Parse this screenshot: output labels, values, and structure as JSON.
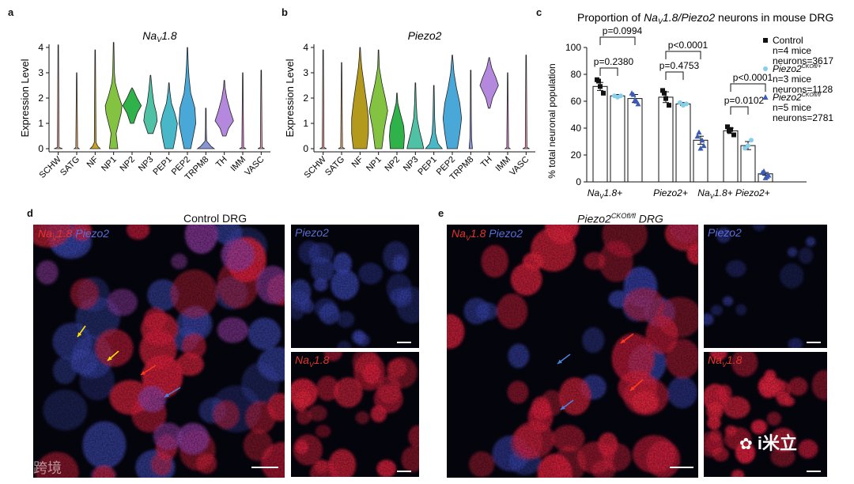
{
  "panel_a": {
    "letter": "a",
    "title_base": "Na",
    "title_sub": "V",
    "title_rest": "1.8",
    "ylabel": "Expression Level",
    "yticks": [
      "0",
      "1",
      "2",
      "3",
      "4"
    ],
    "categories": [
      "SCHW",
      "SATG",
      "NF",
      "NP1",
      "NP2",
      "NP3",
      "PEP1",
      "PEP2",
      "TRPM8",
      "TH",
      "IMM",
      "VASC"
    ]
  },
  "panel_b": {
    "letter": "b",
    "title": "Piezo2",
    "ylabel": "Expression Level",
    "yticks": [
      "0",
      "1",
      "2",
      "3",
      "4"
    ],
    "categories": [
      "SCHW",
      "SATG",
      "NF",
      "NP1",
      "NP2",
      "NP3",
      "PEP1",
      "PEP2",
      "TRPM8",
      "TH",
      "IMM",
      "VASC"
    ]
  },
  "panel_c": {
    "letter": "c",
    "title_pre": "Proportion of ",
    "title_it": "Na",
    "title_sub": "V",
    "title_it2": "1.8/Piezo2",
    "title_post": " neurons in mouse DRG",
    "ylabel": "% total neuronal population",
    "yticks": [
      "0",
      "20",
      "40",
      "60",
      "80",
      "100"
    ],
    "group_labels": [
      "NaV1.8+",
      "Piezo2+",
      "NaV1.8+ Piezo2+"
    ],
    "pvalues": [
      "p=0.0994",
      "p=0.2380",
      "p<0.0001",
      "p=0.4753",
      "p<0.0001",
      "p=0.0102"
    ],
    "legend": [
      {
        "name": "Control",
        "line2": "n=4 mice",
        "line3": "neurons=3617",
        "color": "#111111",
        "marker": "square"
      },
      {
        "name": "Piezo2",
        "sup": "CKOfl/+",
        "line2": "n=3 mice",
        "line3": "neurons=1128",
        "color": "#87ceeb",
        "marker": "circle"
      },
      {
        "name": "Piezo2",
        "sup": "CKOfl/fl",
        "line2": "n=5 mice",
        "line3": "neurons=2781",
        "color": "#3b5bb5",
        "marker": "triangle"
      }
    ]
  },
  "chart_data": [
    {
      "type": "violin",
      "title": "NaV1.8",
      "ylabel": "Expression Level",
      "ylim": [
        0,
        4
      ],
      "categories": [
        "SCHW",
        "SATG",
        "NF",
        "NP1",
        "NP2",
        "NP3",
        "PEP1",
        "PEP2",
        "TRPM8",
        "TH",
        "IMM",
        "VASC"
      ],
      "max_values": [
        4.1,
        3.0,
        3.9,
        4.2,
        2.4,
        2.9,
        2.6,
        4.0,
        1.6,
        2.7,
        3.0,
        3.1
      ],
      "colors": [
        "#f4a6a1",
        "#e8b07a",
        "#c9a227",
        "#84c341",
        "#2fb24a",
        "#4fc1a4",
        "#48b8c9",
        "#4aa8d8",
        "#8896d6",
        "#b488dc",
        "#e08ad6",
        "#f19ebc"
      ]
    },
    {
      "type": "violin",
      "title": "Piezo2",
      "ylabel": "Expression Level",
      "ylim": [
        0,
        4
      ],
      "categories": [
        "SCHW",
        "SATG",
        "NF",
        "NP1",
        "NP2",
        "NP3",
        "PEP1",
        "PEP2",
        "TRPM8",
        "TH",
        "IMM",
        "VASC"
      ],
      "max_values": [
        3.9,
        3.4,
        4.0,
        3.9,
        2.2,
        2.6,
        2.5,
        3.7,
        3.1,
        3.6,
        3.0,
        3.7
      ],
      "colors": [
        "#f4a6a1",
        "#e8b07a",
        "#b49a1c",
        "#84c341",
        "#2fb24a",
        "#4fc1a4",
        "#48b8c9",
        "#4aa8d8",
        "#8896d6",
        "#b488dc",
        "#e08ad6",
        "#f19ebc"
      ]
    },
    {
      "type": "bar",
      "title": "Proportion of NaV1.8/Piezo2 neurons in mouse DRG",
      "ylabel": "% total neuronal population",
      "ylim": [
        0,
        100
      ],
      "categories": [
        "NaV1.8+",
        "Piezo2+",
        "NaV1.8+ Piezo2+"
      ],
      "series": [
        {
          "name": "Control",
          "values": [
            71,
            63,
            38
          ],
          "errors": [
            3,
            4,
            2
          ],
          "points": [
            [
              76,
              71,
              66,
              75
            ],
            [
              68,
              62,
              57,
              66
            ],
            [
              41,
              39,
              35,
              38
            ]
          ]
        },
        {
          "name": "Piezo2 CKOfl/+",
          "values": [
            64,
            58,
            27
          ],
          "errors": [
            1,
            1,
            3
          ],
          "points": [
            [
              64,
              63,
              64
            ],
            [
              59,
              57,
              58
            ],
            [
              25,
              27,
              31
            ]
          ]
        },
        {
          "name": "Piezo2 CKOfl/fl",
          "values": [
            62,
            31,
            6
          ],
          "errors": [
            3,
            3,
            1
          ],
          "points": [
            [
              66,
              61,
              58,
              65,
              60
            ],
            [
              34,
              25,
              27,
              37,
              31
            ],
            [
              7,
              3,
              5,
              8,
              4
            ]
          ]
        }
      ]
    }
  ],
  "panel_d": {
    "letter": "d",
    "title": "Control DRG",
    "label_red": "NaV1.8",
    "label_blue": "Piezo2",
    "inset_top_label": "Piezo2",
    "inset_bottom_label": "NaV1.8"
  },
  "panel_e": {
    "letter": "e",
    "title": "Piezo2CKOfl/fl DRG",
    "label_red": "NaV1.8",
    "label_blue": "Piezo2",
    "inset_top_label": "Piezo2",
    "inset_bottom_label": "NaV1.8"
  },
  "watermarks": {
    "left": "大数跨境",
    "right": "i米立"
  }
}
